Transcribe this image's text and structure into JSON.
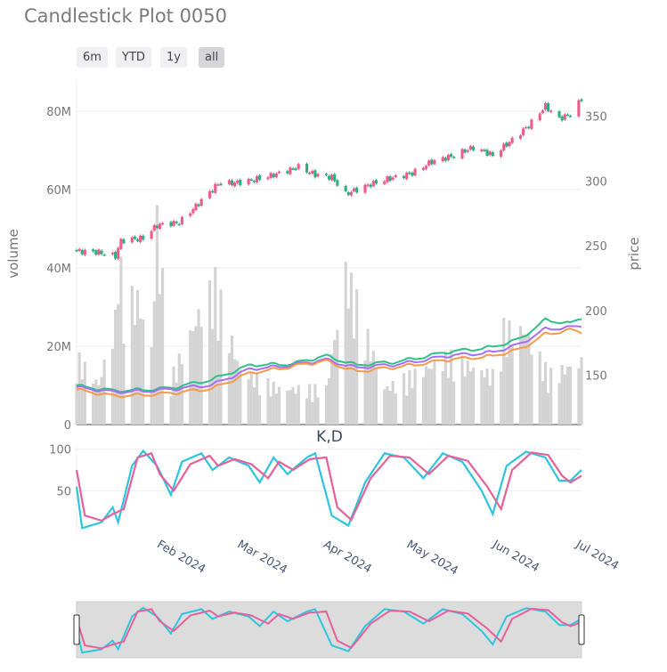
{
  "page": {
    "title": "Candlestick Plot 0050"
  },
  "range_selector": [
    {
      "label": "6m",
      "active": false
    },
    {
      "label": "YTD",
      "active": false
    },
    {
      "label": "1y",
      "active": false
    },
    {
      "label": "all",
      "active": true
    }
  ],
  "colors": {
    "up": "#ef5b8c",
    "down": "#2bb07f",
    "volume": "#d3d3d3",
    "ma_short": "#2fc08a",
    "ma_mid": "#a66ef0",
    "ma_long": "#f59a4a",
    "k_line": "#2ec4e0",
    "d_line": "#e6609a",
    "slider_bg": "#dcdcdc"
  },
  "chart_data": [
    {
      "type": "candlestick",
      "title": "",
      "xlabel": "",
      "ylabel_left": "volume",
      "ylabel_right": "price",
      "x_ticks": [
        "Feb 2024",
        "Mar 2024",
        "Apr 2024",
        "May 2024",
        "Jun 2024",
        "Jul 2024"
      ],
      "y_left_ticks": [
        "0",
        "20M",
        "40M",
        "60M",
        "80M"
      ],
      "y_right_ticks": [
        "150",
        "200",
        "250",
        "300",
        "350"
      ],
      "ylim_left": [
        0,
        88000000
      ],
      "ylim_right": [
        112,
        378
      ],
      "x_range": [
        "2024-01-02",
        "2024-07-02"
      ],
      "ohlc_keypoints": [
        {
          "date": "2024-01-02",
          "close": 246
        },
        {
          "date": "2024-01-10",
          "close": 245
        },
        {
          "date": "2024-01-16",
          "close": 242
        },
        {
          "date": "2024-01-18",
          "close": 254
        },
        {
          "date": "2024-01-26",
          "close": 256
        },
        {
          "date": "2024-01-31",
          "close": 266
        },
        {
          "date": "2024-02-08",
          "close": 268
        },
        {
          "date": "2024-02-16",
          "close": 285
        },
        {
          "date": "2024-02-22",
          "close": 298
        },
        {
          "date": "2024-03-01",
          "close": 299
        },
        {
          "date": "2024-03-08",
          "close": 302
        },
        {
          "date": "2024-03-15",
          "close": 306
        },
        {
          "date": "2024-03-22",
          "close": 311
        },
        {
          "date": "2024-03-28",
          "close": 305
        },
        {
          "date": "2024-04-03",
          "close": 303
        },
        {
          "date": "2024-04-08",
          "close": 290
        },
        {
          "date": "2024-04-15",
          "close": 296
        },
        {
          "date": "2024-04-22",
          "close": 301
        },
        {
          "date": "2024-05-02",
          "close": 306
        },
        {
          "date": "2024-05-09",
          "close": 315
        },
        {
          "date": "2024-05-16",
          "close": 319
        },
        {
          "date": "2024-05-24",
          "close": 326
        },
        {
          "date": "2024-05-31",
          "close": 320
        },
        {
          "date": "2024-06-06",
          "close": 330
        },
        {
          "date": "2024-06-13",
          "close": 343
        },
        {
          "date": "2024-06-19",
          "close": 358
        },
        {
          "date": "2024-06-24",
          "close": 348
        },
        {
          "date": "2024-06-28",
          "close": 352
        },
        {
          "date": "2024-07-02",
          "close": 363
        }
      ],
      "volume_keypoints": [
        {
          "date": "2024-01-02",
          "value": 15000000
        },
        {
          "date": "2024-01-10",
          "value": 9000000
        },
        {
          "date": "2024-01-16",
          "value": 23000000
        },
        {
          "date": "2024-01-17",
          "value": 39000000
        },
        {
          "date": "2024-01-19",
          "value": 27000000
        },
        {
          "date": "2024-01-24",
          "value": 28000000
        },
        {
          "date": "2024-01-29",
          "value": 17000000
        },
        {
          "date": "2024-01-31",
          "value": 45000000
        },
        {
          "date": "2024-02-05",
          "value": 10000000
        },
        {
          "date": "2024-02-16",
          "value": 26000000
        },
        {
          "date": "2024-02-21",
          "value": 31000000
        },
        {
          "date": "2024-03-01",
          "value": 12000000
        },
        {
          "date": "2024-03-15",
          "value": 8000000
        },
        {
          "date": "2024-04-01",
          "value": 8000000
        },
        {
          "date": "2024-04-08",
          "value": 34000000
        },
        {
          "date": "2024-04-22",
          "value": 8000000
        },
        {
          "date": "2024-05-15",
          "value": 15000000
        },
        {
          "date": "2024-05-31",
          "value": 11000000
        },
        {
          "date": "2024-06-04",
          "value": 21000000
        },
        {
          "date": "2024-06-12",
          "value": 21000000
        },
        {
          "date": "2024-06-20",
          "value": 11000000
        },
        {
          "date": "2024-07-02",
          "value": 14000000
        }
      ],
      "moving_averages": [
        {
          "name": "",
          "color_key": "ma_short",
          "points": [
            [
              "2024-01-02",
              142
            ],
            [
              "2024-01-15",
              138
            ],
            [
              "2024-02-05",
              140
            ],
            [
              "2024-02-20",
              147
            ],
            [
              "2024-03-05",
              158
            ],
            [
              "2024-03-20",
              159
            ],
            [
              "2024-04-01",
              165
            ],
            [
              "2024-04-12",
              158
            ],
            [
              "2024-04-25",
              160
            ],
            [
              "2024-05-15",
              168
            ],
            [
              "2024-05-31",
              172
            ],
            [
              "2024-06-10",
              178
            ],
            [
              "2024-06-19",
              193
            ],
            [
              "2024-06-28",
              190
            ],
            [
              "2024-07-02",
              194
            ]
          ]
        },
        {
          "name": "",
          "color_key": "ma_mid",
          "points": [
            [
              "2024-01-02",
              141
            ],
            [
              "2024-01-15",
              137
            ],
            [
              "2024-02-05",
              139
            ],
            [
              "2024-02-20",
              143
            ],
            [
              "2024-03-05",
              155
            ],
            [
              "2024-03-20",
              158
            ],
            [
              "2024-04-01",
              162
            ],
            [
              "2024-04-12",
              156
            ],
            [
              "2024-04-25",
              158
            ],
            [
              "2024-05-15",
              165
            ],
            [
              "2024-05-31",
              168
            ],
            [
              "2024-06-10",
              174
            ],
            [
              "2024-06-19",
              186
            ],
            [
              "2024-06-28",
              187
            ],
            [
              "2024-07-02",
              188
            ]
          ]
        },
        {
          "name": "",
          "color_key": "ma_long",
          "points": [
            [
              "2024-01-02",
              139
            ],
            [
              "2024-01-15",
              134
            ],
            [
              "2024-02-05",
              136
            ],
            [
              "2024-02-20",
              140
            ],
            [
              "2024-03-05",
              152
            ],
            [
              "2024-03-20",
              157
            ],
            [
              "2024-04-01",
              161
            ],
            [
              "2024-04-12",
              153
            ],
            [
              "2024-04-25",
              156
            ],
            [
              "2024-05-15",
              162
            ],
            [
              "2024-05-31",
              165
            ],
            [
              "2024-06-10",
              170
            ],
            [
              "2024-06-19",
              182
            ],
            [
              "2024-06-28",
              185
            ],
            [
              "2024-07-02",
              183
            ]
          ]
        }
      ]
    },
    {
      "type": "line",
      "title": "K,D",
      "xlabel": "",
      "ylabel": "",
      "y_ticks": [
        "50",
        "100"
      ],
      "ylim": [
        0,
        105
      ],
      "series": [
        {
          "name": "",
          "color_key": "k_line",
          "points": [
            [
              "2024-01-02",
              55
            ],
            [
              "2024-01-04",
              5
            ],
            [
              "2024-01-11",
              12
            ],
            [
              "2024-01-15",
              30
            ],
            [
              "2024-01-17",
              12
            ],
            [
              "2024-01-22",
              80
            ],
            [
              "2024-01-26",
              98
            ],
            [
              "2024-01-31",
              80
            ],
            [
              "2024-02-05",
              45
            ],
            [
              "2024-02-09",
              85
            ],
            [
              "2024-02-16",
              95
            ],
            [
              "2024-02-20",
              75
            ],
            [
              "2024-02-26",
              90
            ],
            [
              "2024-03-04",
              80
            ],
            [
              "2024-03-08",
              60
            ],
            [
              "2024-03-13",
              90
            ],
            [
              "2024-03-18",
              70
            ],
            [
              "2024-03-25",
              90
            ],
            [
              "2024-03-28",
              95
            ],
            [
              "2024-04-03",
              20
            ],
            [
              "2024-04-09",
              8
            ],
            [
              "2024-04-15",
              60
            ],
            [
              "2024-04-22",
              95
            ],
            [
              "2024-04-29",
              90
            ],
            [
              "2024-05-06",
              65
            ],
            [
              "2024-05-13",
              95
            ],
            [
              "2024-05-20",
              85
            ],
            [
              "2024-05-27",
              50
            ],
            [
              "2024-05-31",
              22
            ],
            [
              "2024-06-05",
              80
            ],
            [
              "2024-06-12",
              97
            ],
            [
              "2024-06-19",
              90
            ],
            [
              "2024-06-24",
              62
            ],
            [
              "2024-06-28",
              62
            ],
            [
              "2024-07-02",
              75
            ]
          ]
        },
        {
          "name": "",
          "color_key": "d_line",
          "points": [
            [
              "2024-01-02",
              75
            ],
            [
              "2024-01-05",
              20
            ],
            [
              "2024-01-11",
              14
            ],
            [
              "2024-01-15",
              22
            ],
            [
              "2024-01-19",
              28
            ],
            [
              "2024-01-24",
              90
            ],
            [
              "2024-01-29",
              95
            ],
            [
              "2024-02-01",
              70
            ],
            [
              "2024-02-06",
              50
            ],
            [
              "2024-02-12",
              82
            ],
            [
              "2024-02-19",
              92
            ],
            [
              "2024-02-22",
              80
            ],
            [
              "2024-02-28",
              88
            ],
            [
              "2024-03-05",
              82
            ],
            [
              "2024-03-11",
              65
            ],
            [
              "2024-03-15",
              85
            ],
            [
              "2024-03-20",
              75
            ],
            [
              "2024-03-26",
              88
            ],
            [
              "2024-04-01",
              90
            ],
            [
              "2024-04-05",
              30
            ],
            [
              "2024-04-10",
              15
            ],
            [
              "2024-04-17",
              65
            ],
            [
              "2024-04-24",
              92
            ],
            [
              "2024-05-01",
              90
            ],
            [
              "2024-05-08",
              70
            ],
            [
              "2024-05-15",
              92
            ],
            [
              "2024-05-22",
              86
            ],
            [
              "2024-05-29",
              55
            ],
            [
              "2024-06-03",
              28
            ],
            [
              "2024-06-07",
              75
            ],
            [
              "2024-06-14",
              96
            ],
            [
              "2024-06-20",
              93
            ],
            [
              "2024-06-25",
              68
            ],
            [
              "2024-06-28",
              60
            ],
            [
              "2024-07-02",
              68
            ]
          ]
        }
      ]
    }
  ]
}
